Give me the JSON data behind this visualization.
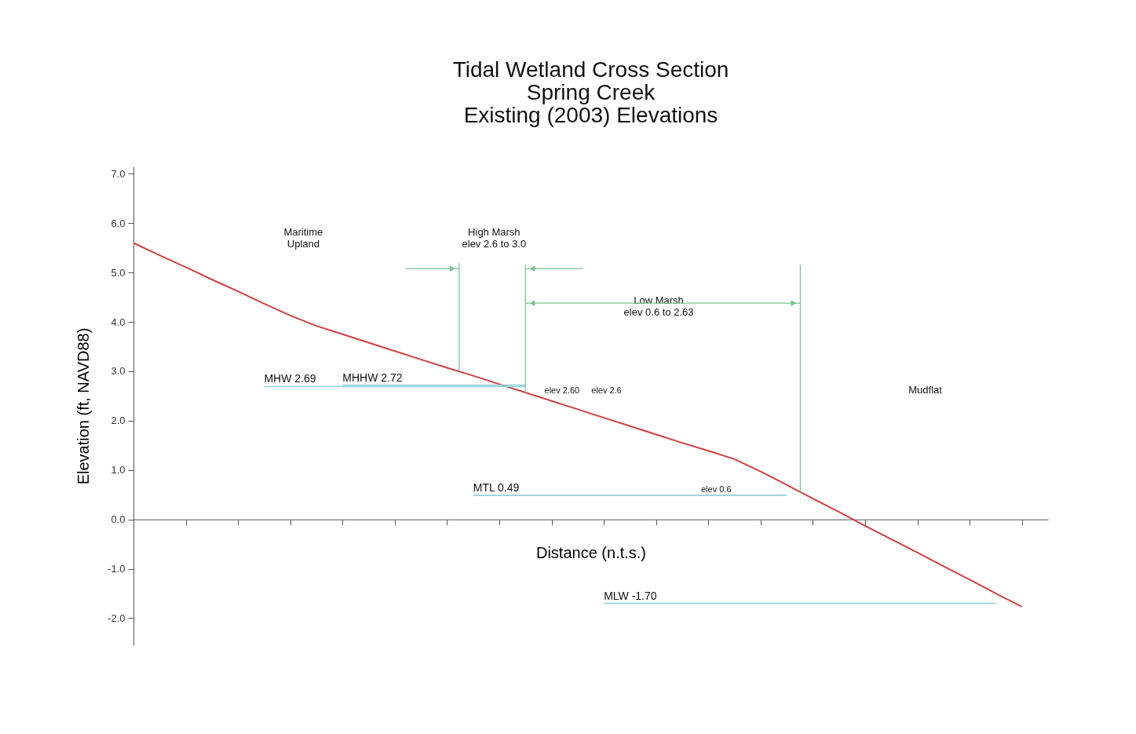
{
  "chart_data": {
    "type": "line",
    "title": "Tidal Wetland Cross Section\nSpring Creek\nExisting (2003) Elevations",
    "xlabel": "Distance (n.t.s.)",
    "ylabel": "Elevation (ft, NAVD88)",
    "categories": [
      null,
      null,
      null,
      null,
      null,
      null,
      null,
      null,
      null,
      null,
      null,
      null,
      null,
      null,
      null,
      null,
      null,
      null,
      null,
      null,
      null,
      null,
      null,
      null,
      null,
      null,
      null,
      null,
      null,
      null,
      null,
      null,
      null,
      null,
      null
    ],
    "ylim": [
      -2.55,
      7.15
    ],
    "yticks": [
      {
        "value": -2,
        "label": "-2.0"
      },
      {
        "value": -1,
        "label": "-1.0"
      },
      {
        "value": 0,
        "label": "0.0"
      },
      {
        "value": 1,
        "label": "1.0"
      },
      {
        "value": 2,
        "label": "2.0"
      },
      {
        "value": 3,
        "label": "3.0"
      },
      {
        "value": 4,
        "label": "4.0"
      },
      {
        "value": 5,
        "label": "5.0"
      },
      {
        "value": 6,
        "label": "6.0"
      },
      {
        "value": 7,
        "label": "7.0"
      }
    ],
    "line_style": "solid",
    "series": [
      {
        "color": "#d0403f",
        "values": [
          5.6,
          5.35,
          5.11,
          4.86,
          4.62,
          4.37,
          4.13,
          3.92,
          3.75,
          3.58,
          3.41,
          3.24,
          3.07,
          2.91,
          2.74,
          2.57,
          2.4,
          2.23,
          2.06,
          1.89,
          1.72,
          1.55,
          1.39,
          1.22,
          0.97,
          0.7,
          0.42,
          0.15,
          -0.13,
          -0.4,
          -0.67,
          -0.95,
          -1.22,
          -1.5,
          -1.77
        ]
      },
      {
        "name": "MHW 2.69",
        "color": "#8fd0d8",
        "values": [
          null,
          null,
          null,
          null,
          null,
          2.69,
          2.69,
          2.69,
          2.69,
          2.69,
          2.69,
          2.69,
          2.69,
          2.69,
          2.69,
          2.69,
          null,
          null,
          null,
          null,
          null,
          null,
          null,
          null,
          null,
          null,
          null,
          null,
          null,
          null,
          null,
          null,
          null,
          null,
          null
        ]
      },
      {
        "name": "MHHW 2.72",
        "color": "#8fd0d8",
        "values": [
          null,
          null,
          null,
          null,
          null,
          null,
          null,
          null,
          2.72,
          2.72,
          2.72,
          2.72,
          2.72,
          2.72,
          2.72,
          2.72,
          null,
          null,
          null,
          null,
          null,
          null,
          null,
          null,
          null,
          null,
          null,
          null,
          null,
          null,
          null,
          null,
          null,
          null,
          null
        ]
      },
      {
        "name": "MTL 0.49",
        "color": "#8fd0d8",
        "values": [
          null,
          null,
          null,
          null,
          null,
          null,
          null,
          null,
          null,
          null,
          null,
          null,
          null,
          0.49,
          0.49,
          0.49,
          0.49,
          0.49,
          0.49,
          0.49,
          0.49,
          0.49,
          0.49,
          0.49,
          0.49,
          0.49,
          null,
          null,
          null,
          null,
          null,
          null,
          null,
          null,
          null
        ]
      },
      {
        "name": "MLW -1.70",
        "color": "#8fd0d8",
        "values": [
          null,
          null,
          null,
          null,
          null,
          null,
          null,
          null,
          null,
          null,
          null,
          null,
          null,
          null,
          null,
          null,
          null,
          null,
          -1.7,
          -1.7,
          -1.7,
          -1.7,
          -1.7,
          -1.7,
          -1.7,
          -1.7,
          -1.7,
          -1.7,
          -1.7,
          -1.7,
          -1.7,
          -1.7,
          -1.7,
          -1.7,
          null
        ]
      }
    ],
    "annotations": [
      "Maritime\nUpland",
      "High Marsh\nelev 2.6 to 3.0",
      "Low Marsh\nelev 0.6 to 2.63",
      "Mudflat",
      "elev 2.60",
      "elev 2.6",
      "elev 0.6"
    ]
  }
}
